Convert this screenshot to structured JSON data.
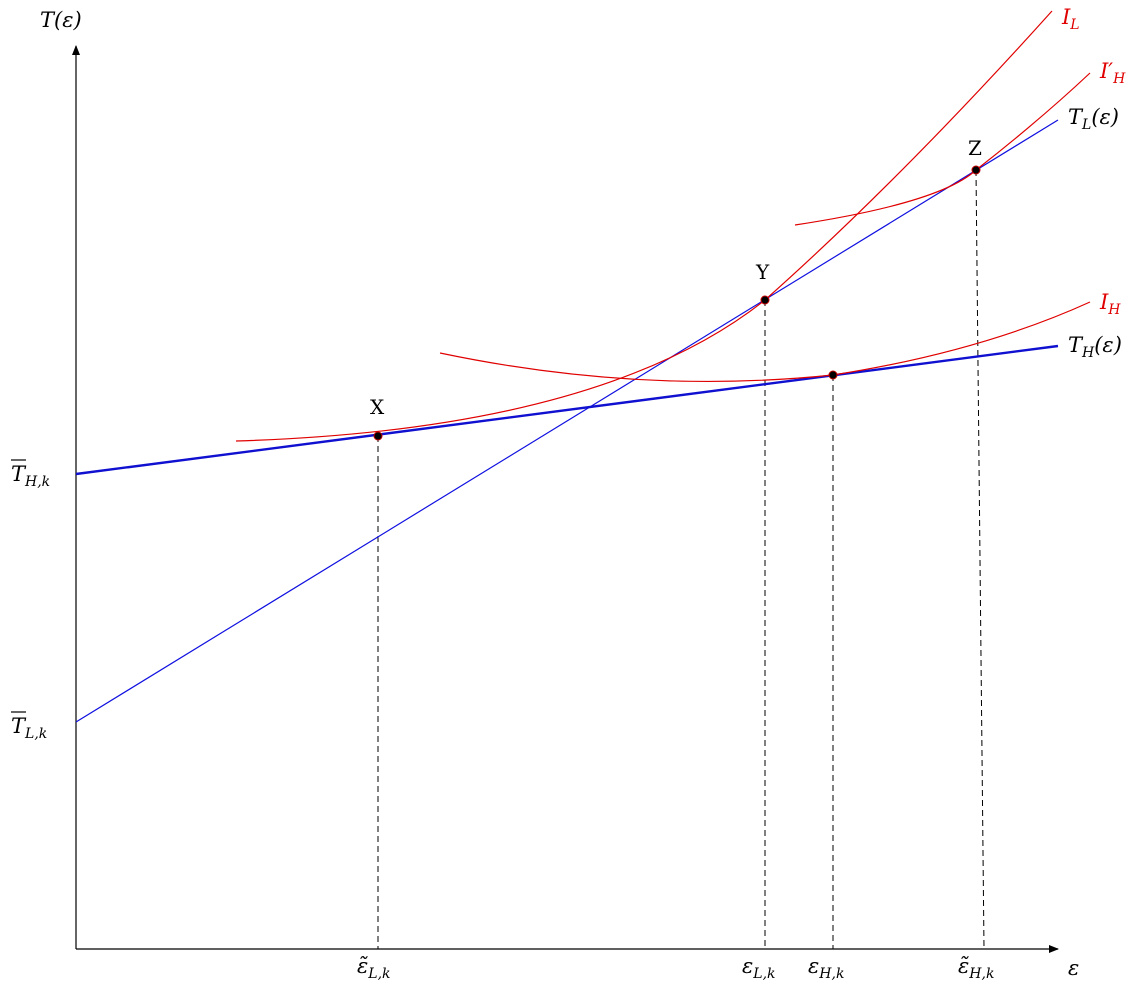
{
  "axes": {
    "y_label": "T(ε)",
    "x_label": "ε"
  },
  "curves": {
    "T_L": {
      "label": "T",
      "sub": "L",
      "suffix": "(ε)",
      "color": "#1010e0"
    },
    "T_H": {
      "label": "T",
      "sub": "H",
      "suffix": "(ε)",
      "color": "#1010d0"
    },
    "I_L": {
      "label": "I",
      "sub": "L",
      "color": "#e00000"
    },
    "I_H_prime": {
      "label": "I′",
      "sub": "H",
      "color": "#e00000"
    },
    "I_H": {
      "label": "I",
      "sub": "H",
      "color": "#e00000"
    }
  },
  "points": {
    "X": "X",
    "Y": "Y",
    "Z": "Z"
  },
  "y_ticks": {
    "T_H_k": {
      "label": "T",
      "sub": "H,k"
    },
    "T_L_k": {
      "label": "T",
      "sub": "L,k"
    }
  },
  "x_ticks": {
    "eps_tilde_L_k": {
      "label": "ε̃",
      "sub": "L,k"
    },
    "eps_L_k": {
      "label": "ε",
      "sub": "L,k"
    },
    "eps_H_k": {
      "label": "ε",
      "sub": "H,k"
    },
    "eps_tilde_H_k": {
      "label": "ε̃",
      "sub": "H,k"
    }
  }
}
